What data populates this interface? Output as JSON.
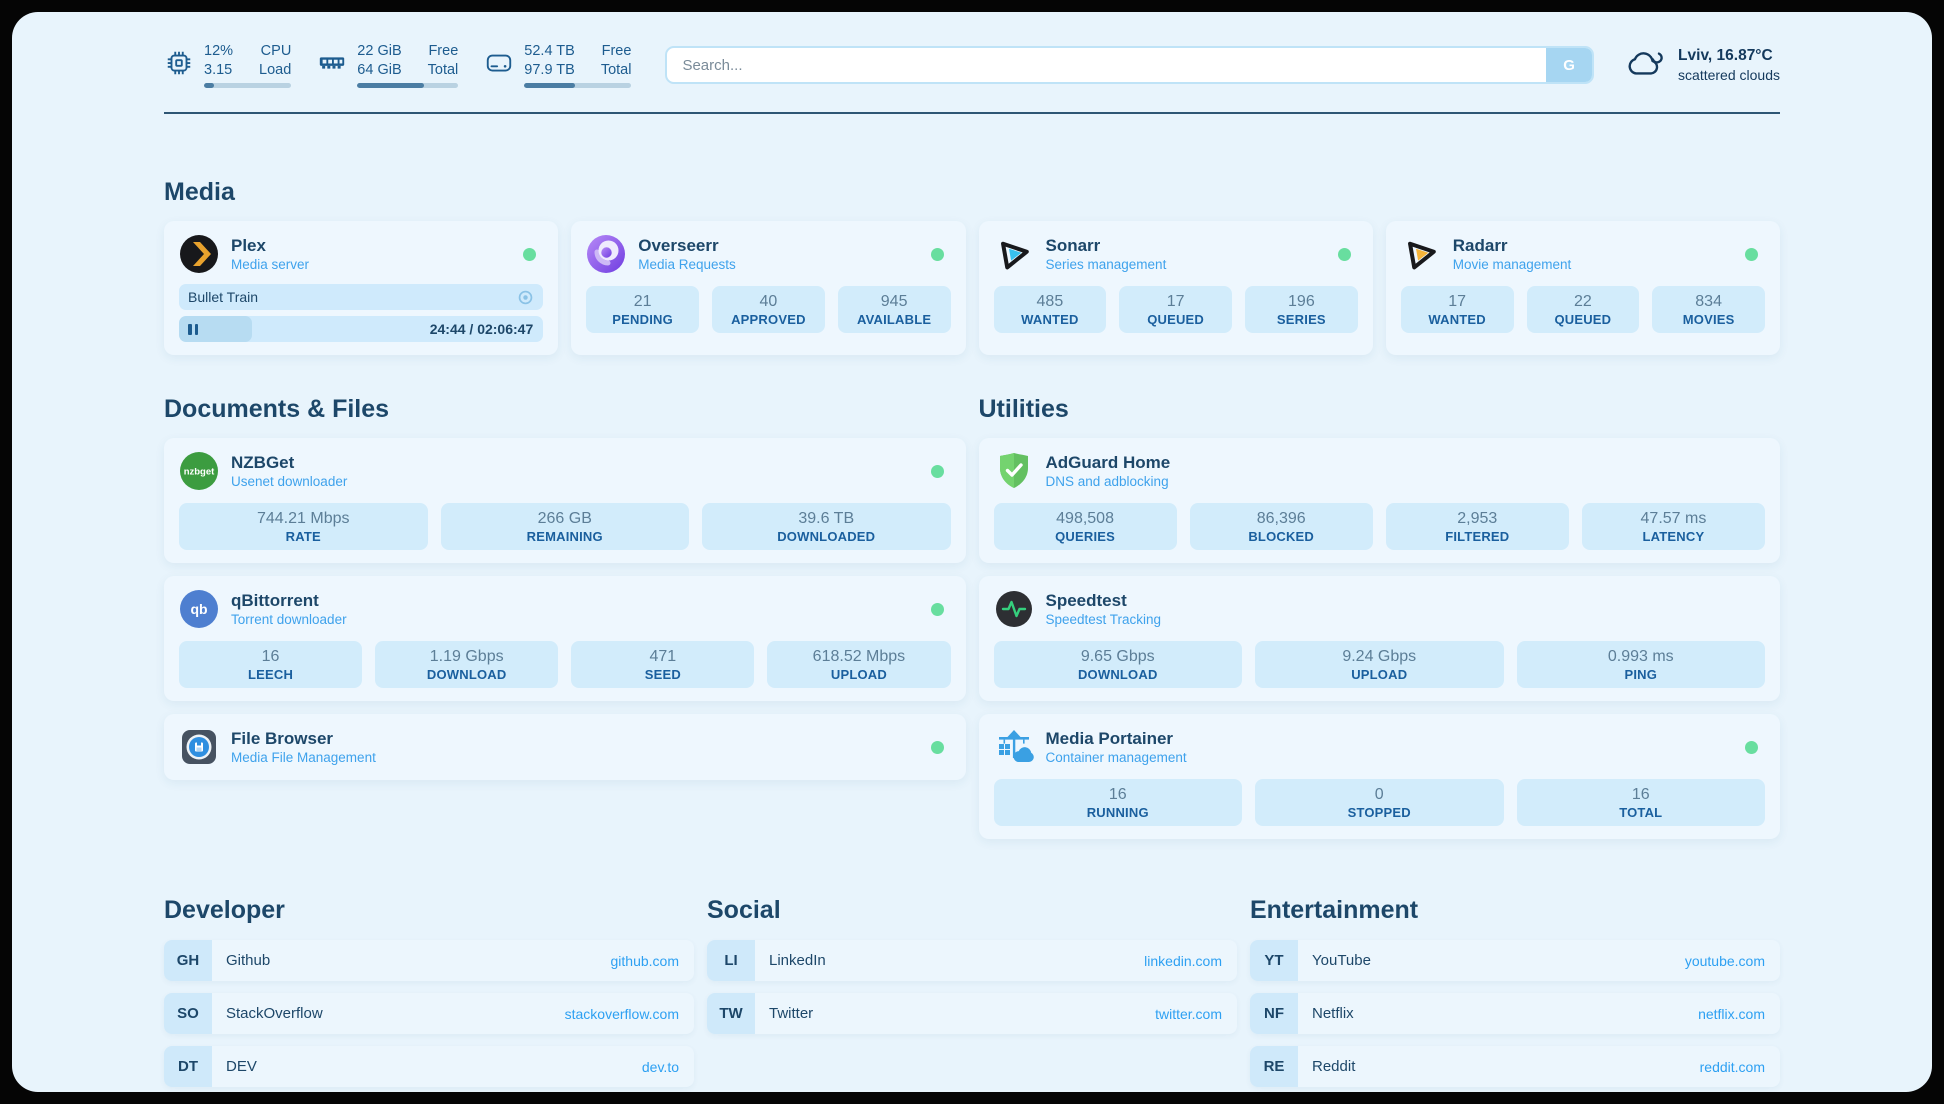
{
  "colors": {
    "page_bg": "#e8f4fc",
    "card_bg": "#eef7fe",
    "tile_bg": "#d2ecfb",
    "navy_text": "#1d4769",
    "subtitle_blue": "#3ea2ec",
    "link_blue": "#2da0f2",
    "status_online": "#68de9f",
    "bar_fill": "#4b7da3",
    "bar_track": "#b9d2e2"
  },
  "topbar": {
    "system_stats": [
      {
        "icon": "cpu-icon",
        "value_top": "12%",
        "value_bottom": "3.15",
        "label_top": "CPU",
        "label_bottom": "Load",
        "bar_pct": 12
      },
      {
        "icon": "ram-icon",
        "value_top": "22 GiB",
        "value_bottom": "64 GiB",
        "label_top": "Free",
        "label_bottom": "Total",
        "bar_pct": 66
      },
      {
        "icon": "disk-icon",
        "value_top": "52.4 TB",
        "value_bottom": "97.9 TB",
        "label_top": "Free",
        "label_bottom": "Total",
        "bar_pct": 47
      }
    ],
    "search": {
      "placeholder": "Search...",
      "engine_button": "G"
    },
    "weather": {
      "location_temperature": "Lviv, 16.87°C",
      "condition": "scattered clouds"
    }
  },
  "media": {
    "heading": "Media",
    "plex": {
      "title": "Plex",
      "subtitle": "Media server",
      "now_playing": "Bullet Train",
      "time": "24:44 / 02:06:47",
      "progress_pct": 20
    },
    "overseerr": {
      "title": "Overseerr",
      "subtitle": "Media Requests",
      "stats": [
        {
          "value": "21",
          "label": "PENDING"
        },
        {
          "value": "40",
          "label": "APPROVED"
        },
        {
          "value": "945",
          "label": "AVAILABLE"
        }
      ]
    },
    "sonarr": {
      "title": "Sonarr",
      "subtitle": "Series management",
      "stats": [
        {
          "value": "485",
          "label": "WANTED"
        },
        {
          "value": "17",
          "label": "QUEUED"
        },
        {
          "value": "196",
          "label": "SERIES"
        }
      ]
    },
    "radarr": {
      "title": "Radarr",
      "subtitle": "Movie management",
      "stats": [
        {
          "value": "17",
          "label": "WANTED"
        },
        {
          "value": "22",
          "label": "QUEUED"
        },
        {
          "value": "834",
          "label": "MOVIES"
        }
      ]
    }
  },
  "documents": {
    "heading": "Documents & Files",
    "nzbget": {
      "title": "NZBGet",
      "subtitle": "Usenet downloader",
      "stats": [
        {
          "value": "744.21 Mbps",
          "label": "RATE"
        },
        {
          "value": "266 GB",
          "label": "REMAINING"
        },
        {
          "value": "39.6 TB",
          "label": "DOWNLOADED"
        }
      ]
    },
    "qbittorrent": {
      "title": "qBittorrent",
      "subtitle": "Torrent downloader",
      "stats": [
        {
          "value": "16",
          "label": "LEECH"
        },
        {
          "value": "1.19 Gbps",
          "label": "DOWNLOAD"
        },
        {
          "value": "471",
          "label": "SEED"
        },
        {
          "value": "618.52 Mbps",
          "label": "UPLOAD"
        }
      ]
    },
    "filebrowser": {
      "title": "File Browser",
      "subtitle": "Media File Management"
    }
  },
  "utilities": {
    "heading": "Utilities",
    "adguard": {
      "title": "AdGuard Home",
      "subtitle": "DNS and adblocking",
      "stats": [
        {
          "value": "498,508",
          "label": "QUERIES"
        },
        {
          "value": "86,396",
          "label": "BLOCKED"
        },
        {
          "value": "2,953",
          "label": "FILTERED"
        },
        {
          "value": "47.57 ms",
          "label": "LATENCY"
        }
      ]
    },
    "speedtest": {
      "title": "Speedtest",
      "subtitle": "Speedtest Tracking",
      "stats": [
        {
          "value": "9.65 Gbps",
          "label": "DOWNLOAD"
        },
        {
          "value": "9.24 Gbps",
          "label": "UPLOAD"
        },
        {
          "value": "0.993 ms",
          "label": "PING"
        }
      ]
    },
    "portainer": {
      "title": "Media Portainer",
      "subtitle": "Container management",
      "stats": [
        {
          "value": "16",
          "label": "RUNNING"
        },
        {
          "value": "0",
          "label": "STOPPED"
        },
        {
          "value": "16",
          "label": "TOTAL"
        }
      ]
    }
  },
  "links": {
    "developer": {
      "heading": "Developer",
      "items": [
        {
          "abbr": "GH",
          "name": "Github",
          "url": "github.com"
        },
        {
          "abbr": "SO",
          "name": "StackOverflow",
          "url": "stackoverflow.com"
        },
        {
          "abbr": "DT",
          "name": "DEV",
          "url": "dev.to"
        }
      ]
    },
    "social": {
      "heading": "Social",
      "items": [
        {
          "abbr": "LI",
          "name": "LinkedIn",
          "url": "linkedin.com"
        },
        {
          "abbr": "TW",
          "name": "Twitter",
          "url": "twitter.com"
        }
      ]
    },
    "entertainment": {
      "heading": "Entertainment",
      "items": [
        {
          "abbr": "YT",
          "name": "YouTube",
          "url": "youtube.com"
        },
        {
          "abbr": "NF",
          "name": "Netflix",
          "url": "netflix.com"
        },
        {
          "abbr": "RE",
          "name": "Reddit",
          "url": "reddit.com"
        }
      ]
    }
  },
  "icons": {
    "nzbget_text": "nzbget",
    "qbittorrent_text": "qb"
  }
}
